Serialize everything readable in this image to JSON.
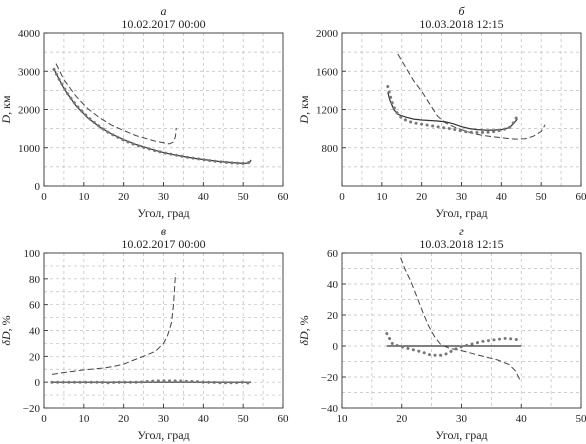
{
  "chart_data": [
    {
      "type": "line",
      "panel_letter": "а",
      "title": "10.02.2017 00:00",
      "xlabel": "Угол, град",
      "ylabel": "D, км",
      "ylabel_italic": "D",
      "ylabel_rest": ", км",
      "xlim": [
        0,
        60
      ],
      "ylim": [
        0,
        4000
      ],
      "xticks": [
        0,
        10,
        20,
        30,
        40,
        50,
        60
      ],
      "yticks": [
        0,
        1000,
        2000,
        3000,
        4000
      ],
      "grid": true,
      "series": [
        {
          "style": "dashed",
          "color": "#444444",
          "x": [
            3,
            5,
            8,
            11,
            14,
            17,
            20,
            23,
            26,
            28,
            30,
            31.5,
            32.5,
            33,
            33.2
          ],
          "y": [
            3200,
            2780,
            2350,
            2020,
            1780,
            1590,
            1450,
            1320,
            1230,
            1170,
            1130,
            1100,
            1150,
            1300,
            1520
          ]
        },
        {
          "style": "solid",
          "color": "#333333",
          "x": [
            2.5,
            5,
            8,
            11,
            14,
            17,
            20,
            23,
            26,
            29,
            32,
            35,
            38,
            41,
            44,
            47,
            50,
            51.5,
            52
          ],
          "y": [
            3050,
            2550,
            2100,
            1780,
            1540,
            1360,
            1210,
            1090,
            990,
            900,
            830,
            770,
            720,
            680,
            640,
            615,
            590,
            600,
            680
          ]
        },
        {
          "style": "dotted",
          "color": "#777777",
          "x": [
            2.5,
            4,
            6,
            8,
            10,
            12,
            14,
            16,
            18,
            20,
            22,
            24,
            26,
            28,
            30,
            32,
            34,
            36,
            38,
            40,
            42,
            44,
            46,
            48,
            50,
            51,
            52
          ],
          "y": [
            3050,
            2750,
            2400,
            2120,
            1900,
            1710,
            1550,
            1410,
            1300,
            1200,
            1110,
            1040,
            980,
            920,
            870,
            830,
            790,
            750,
            720,
            690,
            660,
            635,
            615,
            600,
            590,
            600,
            640
          ]
        }
      ]
    },
    {
      "type": "line",
      "panel_letter": "б",
      "title": "10.03.2018 12:15",
      "xlabel": "Угол, град",
      "ylabel": "D, км",
      "ylabel_italic": "D",
      "ylabel_rest": ", км",
      "xlim": [
        0,
        60
      ],
      "ylim": [
        400,
        2000
      ],
      "xticks": [
        0,
        10,
        20,
        30,
        40,
        50,
        60
      ],
      "yticks": [
        800,
        1200,
        1600,
        2000
      ],
      "grid": true,
      "series": [
        {
          "style": "dashed",
          "color": "#444444",
          "x": [
            14,
            16,
            18,
            20,
            22,
            24,
            26,
            28,
            30,
            32,
            34,
            36,
            38,
            40,
            42,
            44,
            46,
            48,
            50,
            51
          ],
          "y": [
            1780,
            1640,
            1500,
            1390,
            1260,
            1130,
            1060,
            1020,
            990,
            960,
            940,
            925,
            915,
            905,
            895,
            890,
            895,
            920,
            970,
            1040
          ]
        },
        {
          "style": "solid",
          "color": "#333333",
          "x": [
            11.5,
            12,
            13,
            14,
            16,
            18,
            20,
            22,
            24,
            26,
            28,
            30,
            32,
            34,
            36,
            38,
            40,
            42,
            43,
            44
          ],
          "y": [
            1380,
            1300,
            1200,
            1150,
            1120,
            1100,
            1090,
            1085,
            1080,
            1070,
            1050,
            1020,
            1000,
            990,
            985,
            985,
            990,
            1010,
            1050,
            1100
          ]
        },
        {
          "style": "dotted",
          "color": "#777777",
          "x": [
            11.5,
            12.5,
            13.5,
            15,
            16.5,
            18,
            19.5,
            21,
            22.5,
            24,
            25.5,
            27,
            28.5,
            30,
            31.5,
            33,
            34.5,
            36,
            37.5,
            39,
            40.5,
            42,
            43,
            44
          ],
          "y": [
            1440,
            1280,
            1180,
            1110,
            1080,
            1060,
            1050,
            1040,
            1030,
            1020,
            1010,
            1000,
            990,
            975,
            965,
            960,
            958,
            960,
            965,
            975,
            990,
            1010,
            1060,
            1130
          ]
        }
      ]
    },
    {
      "type": "line",
      "panel_letter": "в",
      "title": "10.02.2017 00:00",
      "xlabel": "Угол, град",
      "ylabel": "δD, %",
      "ylabel_italic": "δD",
      "ylabel_rest": ", %",
      "xlim": [
        0,
        60
      ],
      "ylim": [
        -20,
        100
      ],
      "xticks": [
        0,
        10,
        20,
        30,
        40,
        50,
        60
      ],
      "yticks": [
        -20,
        0,
        20,
        40,
        60,
        80,
        100
      ],
      "grid": true,
      "series": [
        {
          "style": "dashed",
          "color": "#444444",
          "x": [
            2,
            5,
            10,
            15,
            18,
            20,
            22,
            25,
            28,
            30,
            31,
            32,
            32.5,
            33
          ],
          "y": [
            6,
            7.5,
            9.5,
            11,
            12.5,
            14,
            16.5,
            20,
            24,
            30,
            36,
            46,
            60,
            84
          ]
        },
        {
          "style": "solid",
          "color": "#333333",
          "x": [
            2,
            52
          ],
          "y": [
            0,
            0
          ]
        },
        {
          "style": "dotted",
          "color": "#777777",
          "x": [
            2,
            4,
            6,
            8,
            10,
            12,
            14,
            16,
            18,
            20,
            22,
            24,
            26,
            28,
            30,
            32,
            34,
            36,
            38,
            40,
            42,
            44,
            46,
            48,
            50,
            52
          ],
          "y": [
            0,
            0,
            0,
            0,
            0,
            0,
            0,
            -0.5,
            0,
            0,
            0,
            0,
            0.5,
            1,
            1,
            1,
            1,
            0.5,
            0.5,
            0,
            0,
            -0.5,
            -0.5,
            -0.5,
            0,
            -1
          ]
        }
      ]
    },
    {
      "type": "line",
      "panel_letter": "г",
      "title": "10.03.2018 12:15",
      "xlabel": "Угол, град",
      "ylabel": "δD, %",
      "ylabel_italic": "δD",
      "ylabel_rest": ", %",
      "xlim": [
        10,
        50
      ],
      "ylim": [
        -40,
        60
      ],
      "xticks": [
        10,
        20,
        30,
        40,
        50
      ],
      "yticks": [
        -40,
        -20,
        0,
        20,
        40,
        60
      ],
      "grid": true,
      "series": [
        {
          "style": "dashed",
          "color": "#444444",
          "x": [
            19.8,
            20.5,
            21.5,
            22.5,
            23.5,
            24.5,
            25.5,
            26.5,
            28,
            30,
            32,
            34,
            36,
            38,
            39,
            39.8
          ],
          "y": [
            57,
            50,
            42,
            32,
            22,
            13,
            6,
            1,
            -1.5,
            -3,
            -5,
            -7,
            -9,
            -12,
            -16,
            -22
          ]
        },
        {
          "style": "solid",
          "color": "#333333",
          "x": [
            17.5,
            40
          ],
          "y": [
            0,
            0
          ]
        },
        {
          "style": "dotted",
          "color": "#777777",
          "x": [
            17.5,
            18.5,
            19.5,
            20.5,
            21.5,
            22.5,
            23.5,
            24.5,
            25.5,
            26.5,
            27.5,
            28.5,
            29.5,
            30.5,
            31.5,
            32.5,
            33.5,
            34.5,
            35.5,
            36.5,
            37.5,
            38.5,
            39.5
          ],
          "y": [
            8,
            1,
            0,
            -1,
            -2,
            -3,
            -4,
            -5.5,
            -6,
            -6,
            -5,
            -3,
            -1,
            0,
            1,
            2,
            3,
            3.5,
            4,
            4.5,
            5,
            4.5,
            4
          ]
        }
      ]
    }
  ]
}
